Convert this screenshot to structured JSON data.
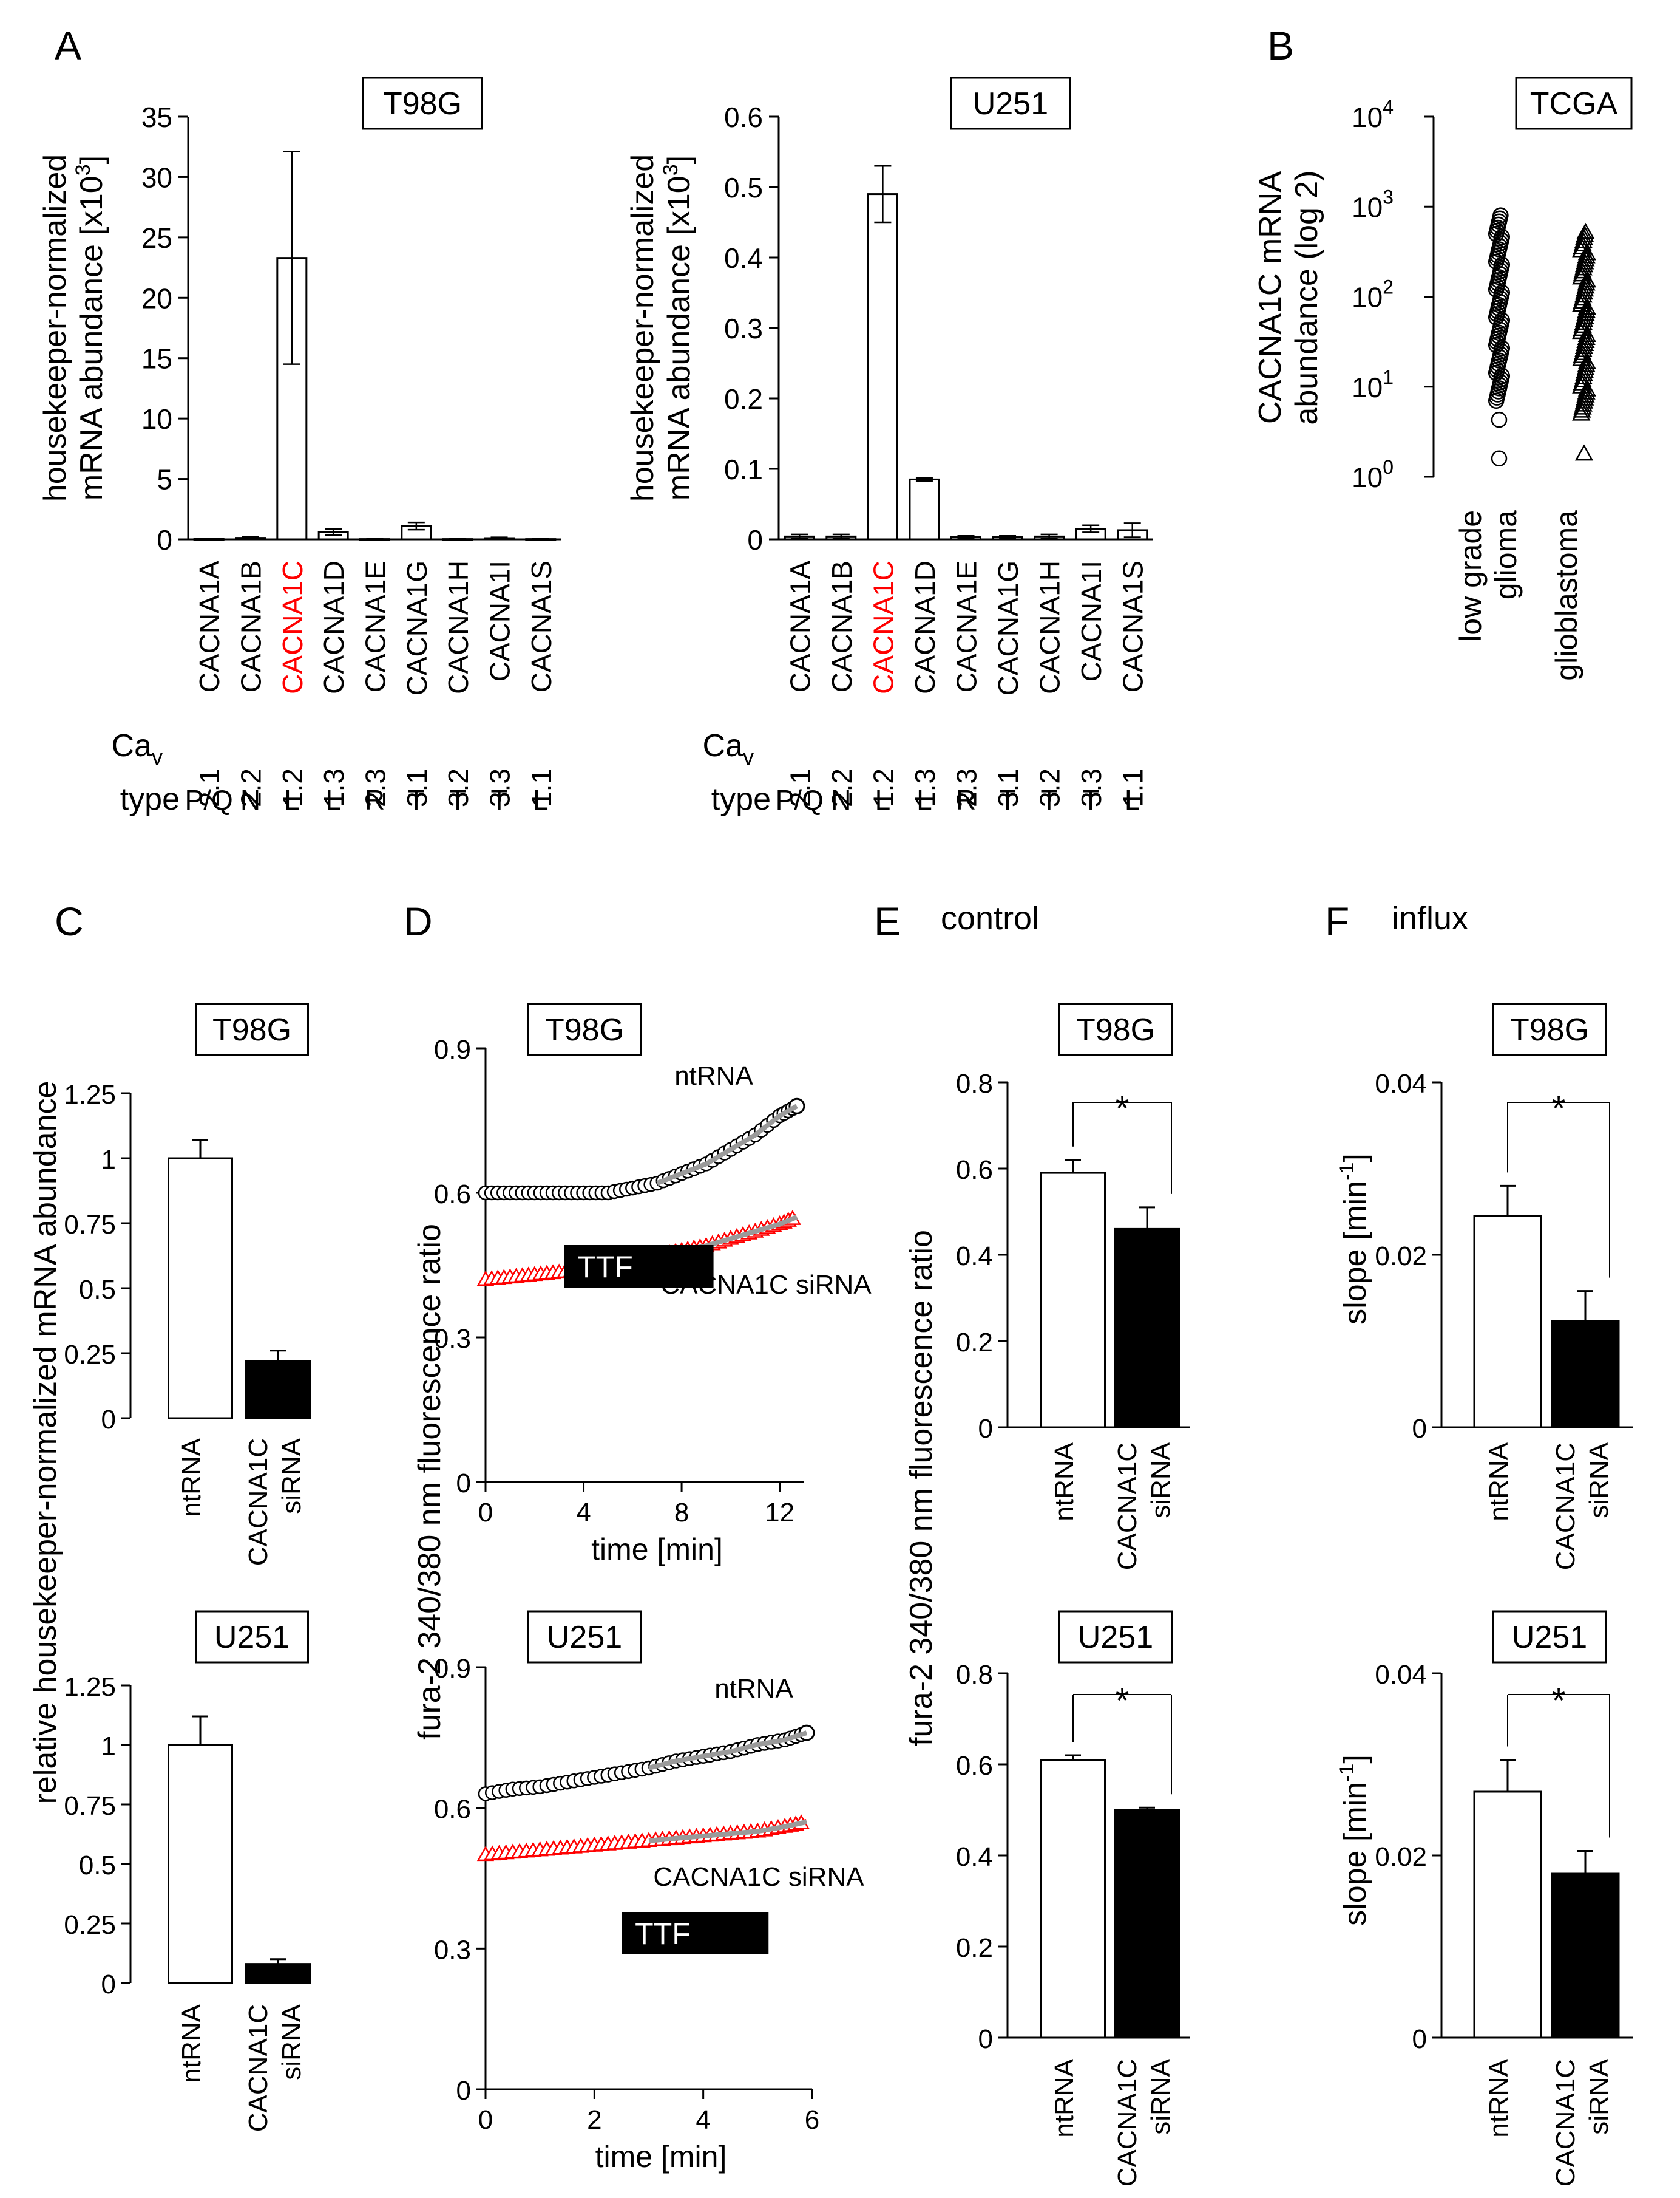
{
  "panel_labels": {
    "A": "A",
    "B": "B",
    "C": "C",
    "D": "D",
    "E": "E",
    "F": "F"
  },
  "panel_titles": {
    "E": "control",
    "F": "influx"
  },
  "row_labels": {
    "cav": "Ca",
    "cav_sub": "v",
    "type": "type"
  },
  "colors": {
    "red": "#ff0000",
    "black": "#000000",
    "gray": "#9a9a9a"
  },
  "chart_data": [
    {
      "id": "A1",
      "type": "bar",
      "title": "T98G",
      "ylabel_lines": [
        "housekeeper-normalized",
        "mRNA abundance [x10",
        "3",
        "]"
      ],
      "ylim": [
        0,
        35
      ],
      "yticks": [
        "0",
        "5",
        "10",
        "15",
        "20",
        "25",
        "30",
        "35"
      ],
      "categories": [
        "CACNA1A",
        "CACNA1B",
        "CACNA1C",
        "CACNA1D",
        "CACNA1E",
        "CACNA1G",
        "CACNA1H",
        "CACNA1I",
        "CACNA1S"
      ],
      "highlight": "CACNA1C",
      "cav": [
        "2.1",
        "2.2",
        "1.2",
        "1.3",
        "2.3",
        "3.1",
        "3.2",
        "3.3",
        "1.1"
      ],
      "channel_type": [
        "P/Q",
        "N",
        "L",
        "L",
        "R",
        "T",
        "T",
        "T",
        "L"
      ],
      "values": [
        0.03,
        0.12,
        23.3,
        0.6,
        0.02,
        1.1,
        0.02,
        0.1,
        0.02
      ],
      "errors": [
        0.02,
        0.1,
        8.8,
        0.25,
        0.02,
        0.3,
        0.02,
        0.07,
        0.02
      ]
    },
    {
      "id": "A2",
      "type": "bar",
      "title": "U251",
      "ylabel_lines": [
        "housekeeper-normalized",
        "mRNA abundance [x10",
        "3",
        "]"
      ],
      "ylim": [
        0,
        0.6
      ],
      "yticks": [
        "0",
        "0.1",
        "0.2",
        "0.3",
        "0.4",
        "0.5",
        "0.6"
      ],
      "categories": [
        "CACNA1A",
        "CACNA1B",
        "CACNA1C",
        "CACNA1D",
        "CACNA1E",
        "CACNA1G",
        "CACNA1H",
        "CACNA1I",
        "CACNA1S"
      ],
      "highlight": "CACNA1C",
      "cav": [
        "2.1",
        "2.2",
        "1.2",
        "1.3",
        "2.3",
        "3.1",
        "3.2",
        "3.3",
        "1.1"
      ],
      "channel_type": [
        "P/Q",
        "N",
        "L",
        "L",
        "R",
        "T",
        "T",
        "T",
        "L"
      ],
      "values": [
        0.004,
        0.004,
        0.49,
        0.085,
        0.003,
        0.003,
        0.004,
        0.015,
        0.013
      ],
      "errors": [
        0.003,
        0.003,
        0.04,
        0.002,
        0.002,
        0.002,
        0.003,
        0.005,
        0.01
      ]
    },
    {
      "id": "B",
      "type": "scatter",
      "title": "TCGA",
      "ylabel_lines": [
        "CACNA1C mRNA",
        "abundance (log 2)"
      ],
      "yscale": "log10",
      "ylim": [
        1,
        10000
      ],
      "yticks": [
        {
          "base": "10",
          "exp": "0"
        },
        {
          "base": "10",
          "exp": "1"
        },
        {
          "base": "10",
          "exp": "2"
        },
        {
          "base": "10",
          "exp": "3"
        },
        {
          "base": "10",
          "exp": "4"
        }
      ],
      "categories": [
        "low grade glioma",
        "glioblastoma"
      ],
      "category_lines": [
        [
          "low grade",
          "glioma"
        ],
        [
          "glioblastoma"
        ]
      ],
      "markers": [
        "circle",
        "triangle"
      ],
      "series": [
        {
          "name": "low grade glioma",
          "marker": "circle",
          "range": [
            7,
            800
          ],
          "outliers": [
            4.3,
            1.6
          ]
        },
        {
          "name": "glioblastoma",
          "marker": "triangle",
          "range": [
            5,
            520
          ],
          "outliers": [
            1.8
          ]
        }
      ]
    },
    {
      "id": "C1",
      "type": "bar",
      "title": "T98G",
      "ylim": [
        0,
        1.25
      ],
      "yticks": [
        "0",
        "0.25",
        "0.5",
        "0.75",
        "1",
        "1.25"
      ],
      "categories": [
        "ntRNA",
        "CACNA1C siRNA"
      ],
      "category_lines": [
        [
          "ntRNA"
        ],
        [
          "CACNA1C",
          "siRNA"
        ]
      ],
      "values": [
        1.0,
        0.22
      ],
      "errors": [
        0.07,
        0.04
      ],
      "fill": [
        "white",
        "black"
      ]
    },
    {
      "id": "C2",
      "type": "bar",
      "title": "U251",
      "ylim": [
        0,
        1.25
      ],
      "yticks": [
        "0",
        "0.25",
        "0.5",
        "0.75",
        "1",
        "1.25"
      ],
      "categories": [
        "ntRNA",
        "CACNA1C siRNA"
      ],
      "category_lines": [
        [
          "ntRNA"
        ],
        [
          "CACNA1C",
          "siRNA"
        ]
      ],
      "values": [
        1.0,
        0.08
      ],
      "errors": [
        0.12,
        0.02
      ],
      "fill": [
        "white",
        "black"
      ]
    },
    {
      "id": "D1",
      "type": "line",
      "title": "T98G",
      "xlabel": "time [min]",
      "xlim": [
        0,
        13
      ],
      "xticks": [
        "0",
        "4",
        "8",
        "12"
      ],
      "ylim": [
        0,
        0.9
      ],
      "yticks": [
        "0",
        "0.3",
        "0.6",
        "0.9"
      ],
      "bar_label": "TTF",
      "bar_range": [
        3.2,
        9.3
      ],
      "series": [
        {
          "name": "ntRNA",
          "marker": "circle",
          "color": "#000000",
          "x": [
            0,
            1,
            2,
            3,
            4,
            5,
            6,
            7,
            8,
            9,
            10,
            11,
            12,
            12.7
          ],
          "y": [
            0.6,
            0.6,
            0.6,
            0.6,
            0.6,
            0.6,
            0.61,
            0.62,
            0.64,
            0.66,
            0.69,
            0.72,
            0.76,
            0.78
          ]
        },
        {
          "name": "CACNA1C siRNA",
          "marker": "triangle",
          "color": "#ff0000",
          "x": [
            0,
            1,
            2,
            3,
            4,
            5,
            6,
            7,
            8,
            9,
            10,
            11,
            12,
            12.7
          ],
          "y": [
            0.42,
            0.425,
            0.43,
            0.435,
            0.44,
            0.445,
            0.455,
            0.47,
            0.48,
            0.49,
            0.505,
            0.52,
            0.535,
            0.55
          ]
        }
      ]
    },
    {
      "id": "D2",
      "type": "line",
      "title": "U251",
      "xlabel": "time [min]",
      "xlim": [
        0,
        6
      ],
      "xticks": [
        "0",
        "2",
        "4",
        "6"
      ],
      "ylim": [
        0,
        0.9
      ],
      "yticks": [
        "0",
        "0.3",
        "0.6",
        "0.9"
      ],
      "bar_label": "TTF",
      "bar_range": [
        2.5,
        5.2
      ],
      "series": [
        {
          "name": "ntRNA",
          "marker": "circle",
          "color": "#000000",
          "x": [
            0,
            0.5,
            1,
            1.5,
            2,
            2.5,
            3,
            3.5,
            4,
            4.5,
            5,
            5.5,
            5.9
          ],
          "y": [
            0.63,
            0.64,
            0.645,
            0.655,
            0.665,
            0.675,
            0.685,
            0.7,
            0.71,
            0.72,
            0.735,
            0.745,
            0.76
          ]
        },
        {
          "name": "CACNA1C siRNA",
          "marker": "triangle",
          "color": "#ff0000",
          "x": [
            0,
            0.5,
            1,
            1.5,
            2,
            2.5,
            3,
            3.5,
            4,
            4.5,
            5,
            5.5,
            5.9
          ],
          "y": [
            0.5,
            0.505,
            0.51,
            0.515,
            0.52,
            0.525,
            0.53,
            0.535,
            0.54,
            0.545,
            0.55,
            0.56,
            0.57
          ]
        }
      ]
    },
    {
      "id": "E1",
      "type": "bar",
      "title": "T98G",
      "ylim": [
        0,
        0.8
      ],
      "yticks": [
        "0",
        "0.2",
        "0.4",
        "0.6",
        "0.8"
      ],
      "categories": [
        "ntRNA",
        "CACNA1C siRNA"
      ],
      "category_lines": [
        [
          "ntRNA"
        ],
        [
          "CACNA1C",
          "siRNA"
        ]
      ],
      "values": [
        0.59,
        0.46
      ],
      "errors": [
        0.03,
        0.05
      ],
      "fill": [
        "white",
        "black"
      ],
      "significance": "*"
    },
    {
      "id": "E2",
      "type": "bar",
      "title": "U251",
      "ylim": [
        0,
        0.8
      ],
      "yticks": [
        "0",
        "0.2",
        "0.4",
        "0.6",
        "0.8"
      ],
      "categories": [
        "ntRNA",
        "CACNA1C siRNA"
      ],
      "category_lines": [
        [
          "ntRNA"
        ],
        [
          "CACNA1C",
          "siRNA"
        ]
      ],
      "values": [
        0.61,
        0.5
      ],
      "errors": [
        0.01,
        0.005
      ],
      "fill": [
        "white",
        "black"
      ],
      "significance": "*"
    },
    {
      "id": "F1",
      "type": "bar",
      "title": "T98G",
      "ylim": [
        0,
        0.04
      ],
      "yticks": [
        "0",
        "0.02",
        "0.04"
      ],
      "categories": [
        "ntRNA",
        "CACNA1C siRNA"
      ],
      "category_lines": [
        [
          "ntRNA"
        ],
        [
          "CACNA1C",
          "siRNA"
        ]
      ],
      "values": [
        0.0245,
        0.0123
      ],
      "errors": [
        0.0035,
        0.0035
      ],
      "fill": [
        "white",
        "black"
      ],
      "significance": "*"
    },
    {
      "id": "F2",
      "type": "bar",
      "title": "U251",
      "ylim": [
        0,
        0.04
      ],
      "yticks": [
        "0",
        "0.02",
        "0.04"
      ],
      "categories": [
        "ntRNA",
        "CACNA1C siRNA"
      ],
      "category_lines": [
        [
          "ntRNA"
        ],
        [
          "CACNA1C",
          "siRNA"
        ]
      ],
      "values": [
        0.027,
        0.018
      ],
      "errors": [
        0.0035,
        0.0025
      ],
      "fill": [
        "white",
        "black"
      ],
      "significance": "*"
    }
  ],
  "shared_axis_labels": {
    "C": "relative housekeeper-normalized mRNA abundance",
    "D": "fura-2 340/380 nm fluorescence ratio",
    "E": "fura-2 340/380 nm fluorescence ratio",
    "F1": "slope  [min",
    "F1_sup": "-1",
    "F1_end": "]"
  }
}
